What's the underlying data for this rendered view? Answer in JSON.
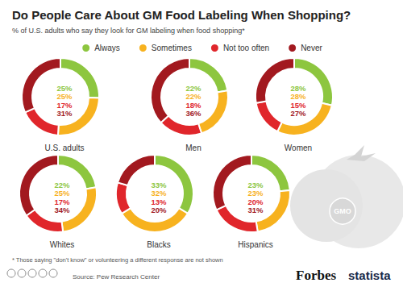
{
  "title": "Do People Care About GM Food Labeling When Shopping?",
  "subtitle": "% of U.S. adults who say they look for GM labeling when food shopping*",
  "footnote": "* Those saying \"don't know\" or volunteering a different response are not shown",
  "source": "Source: Pew Research Center",
  "logos": [
    "Forbes",
    "statista"
  ],
  "annotation": "GMO",
  "chart_data": [
    {
      "type": "pie",
      "title": "U.S. adults",
      "legend": "top",
      "data_labels": true,
      "categories": [
        "Always",
        "Sometimes",
        "Not too often",
        "Never"
      ],
      "values": [
        25,
        25,
        17,
        31
      ],
      "value_labels": [
        "25%",
        "25%",
        "17%",
        "31%"
      ],
      "colors": [
        "#8dc63f",
        "#f7b21f",
        "#e0262b",
        "#a2191f"
      ]
    },
    {
      "type": "pie",
      "title": "Men",
      "data_labels": true,
      "categories": [
        "Always",
        "Sometimes",
        "Not too often",
        "Never"
      ],
      "values": [
        22,
        22,
        18,
        36
      ],
      "value_labels": [
        "22%",
        "22%",
        "18%",
        "36%"
      ],
      "colors": [
        "#8dc63f",
        "#f7b21f",
        "#e0262b",
        "#a2191f"
      ]
    },
    {
      "type": "pie",
      "title": "Women",
      "data_labels": true,
      "categories": [
        "Always",
        "Sometimes",
        "Not too often",
        "Never"
      ],
      "values": [
        28,
        28,
        15,
        27
      ],
      "value_labels": [
        "28%",
        "28%",
        "15%",
        "27%"
      ],
      "colors": [
        "#8dc63f",
        "#f7b21f",
        "#e0262b",
        "#a2191f"
      ]
    },
    {
      "type": "pie",
      "title": "Whites",
      "data_labels": true,
      "categories": [
        "Always",
        "Sometimes",
        "Not too often",
        "Never"
      ],
      "values": [
        22,
        25,
        17,
        34
      ],
      "value_labels": [
        "22%",
        "25%",
        "17%",
        "34%"
      ],
      "colors": [
        "#8dc63f",
        "#f7b21f",
        "#e0262b",
        "#a2191f"
      ]
    },
    {
      "type": "pie",
      "title": "Blacks",
      "data_labels": true,
      "categories": [
        "Always",
        "Sometimes",
        "Not too often",
        "Never"
      ],
      "values": [
        33,
        32,
        13,
        20
      ],
      "value_labels": [
        "33%",
        "32%",
        "13%",
        "20%"
      ],
      "colors": [
        "#8dc63f",
        "#f7b21f",
        "#e0262b",
        "#a2191f"
      ]
    },
    {
      "type": "pie",
      "title": "Hispanics",
      "data_labels": true,
      "categories": [
        "Always",
        "Sometimes",
        "Not too often",
        "Never"
      ],
      "values": [
        23,
        23,
        20,
        31
      ],
      "value_labels": [
        "23%",
        "23%",
        "20%",
        "31%"
      ],
      "colors": [
        "#8dc63f",
        "#f7b21f",
        "#e0262b",
        "#a2191f"
      ]
    }
  ]
}
